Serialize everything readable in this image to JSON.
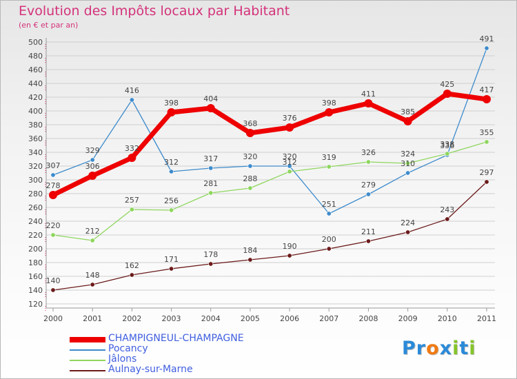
{
  "chart_data": {
    "type": "line",
    "title": "Evolution des Impôts locaux par Habitant",
    "subtitle": "(en € et par an)",
    "x": [
      "2000",
      "2001",
      "2002",
      "2003",
      "2004",
      "2005",
      "2006",
      "2007",
      "2008",
      "2009",
      "2010",
      "2011"
    ],
    "ylim": [
      120,
      500
    ],
    "yticks": [
      120,
      140,
      160,
      180,
      200,
      220,
      240,
      260,
      280,
      300,
      320,
      340,
      360,
      380,
      400,
      420,
      440,
      460,
      480,
      500
    ],
    "grid": true,
    "legend_position": "bottom-left",
    "series": [
      {
        "name": "CHAMPIGNEUL-CHAMPAGNE",
        "color": "#ee0000",
        "values": [
          278,
          306,
          332,
          398,
          404,
          368,
          376,
          398,
          411,
          385,
          425,
          417
        ]
      },
      {
        "name": "Pocancy",
        "color": "#3d8bcc",
        "values": [
          307,
          329,
          416,
          312,
          317,
          320,
          320,
          251,
          279,
          310,
          336,
          491
        ]
      },
      {
        "name": "Jâlons",
        "color": "#8ed65e",
        "values": [
          220,
          212,
          257,
          256,
          281,
          288,
          312,
          319,
          326,
          324,
          338,
          355
        ]
      },
      {
        "name": "Aulnay-sur-Marne",
        "color": "#6b1a1a",
        "values": [
          140,
          148,
          162,
          171,
          178,
          184,
          190,
          200,
          211,
          224,
          243,
          297
        ]
      }
    ]
  },
  "logo": {
    "text": "Proxiti",
    "letters": [
      "P",
      "r",
      "o",
      "x",
      "i",
      "t",
      "i"
    ],
    "colors": [
      "#2b8ad8",
      "#2b8ad8",
      "#f07a12",
      "#2b8ad8",
      "#86c42a",
      "#2b8ad8",
      "#86c42a"
    ]
  }
}
